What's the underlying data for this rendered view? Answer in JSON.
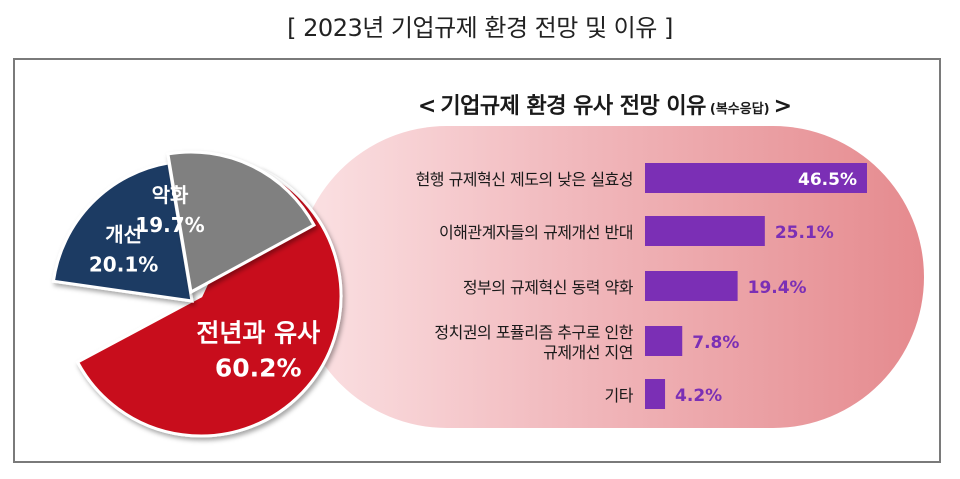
{
  "title": "[ 2023년 기업규제 환경 전망 및 이유 ]",
  "chart_data": [
    {
      "type": "pie",
      "slices": [
        {
          "label": "전년과 유사",
          "value": 60.2,
          "value_label": "60.2%",
          "color": "#c8101a",
          "label_color": "#ffffff"
        },
        {
          "label": "개선",
          "value": 20.1,
          "value_label": "20.1%",
          "color": "#1f3a63",
          "label_color": "#ffffff"
        },
        {
          "label": "악화",
          "value": 19.7,
          "value_label": "19.7%",
          "color": "#808080",
          "label_color": "#ffffff"
        }
      ]
    },
    {
      "type": "bar",
      "orientation": "horizontal",
      "title": "기업규제 환경 유사 전망 이유",
      "title_note": "(복수응답)",
      "categories": [
        [
          "현행 규제혁신 제도의 낮은 실효성"
        ],
        [
          "이해관계자들의 규제개선 반대"
        ],
        [
          "정부의 규제혁신 동력 약화"
        ],
        [
          "정치권의 포퓰리즘 추구로 인한",
          "규제개선 지연"
        ],
        [
          "기타"
        ]
      ],
      "values": [
        46.5,
        25.1,
        19.4,
        7.8,
        4.2
      ],
      "value_labels": [
        "46.5%",
        "25.1%",
        "19.4%",
        "7.8%",
        "4.2%"
      ],
      "bar_color": "#7b2fb5",
      "label_color": "#7b2fb5",
      "first_label_color": "#ffffff"
    }
  ]
}
